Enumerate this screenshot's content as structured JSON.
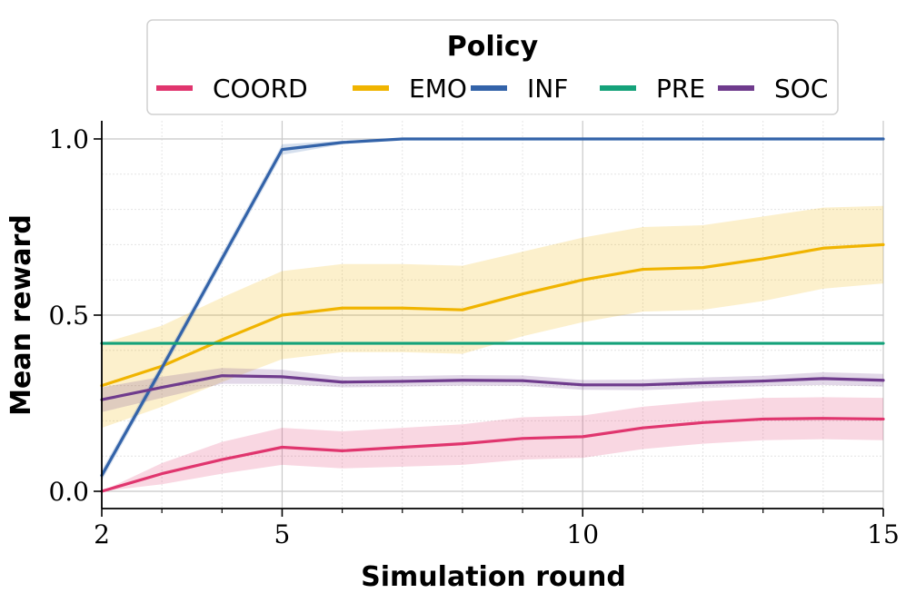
{
  "chart_data": {
    "type": "line",
    "xlabel": "Simulation round",
    "ylabel": "Mean reward",
    "xlim": [
      2,
      15
    ],
    "ylim": [
      -0.05,
      1.05
    ],
    "xticks": [
      2,
      5,
      10,
      15
    ],
    "xtick_labels": [
      "2",
      "5",
      "10",
      "15"
    ],
    "yticks": [
      0.0,
      0.5,
      1.0
    ],
    "ytick_labels": [
      "0.0",
      "0.5",
      "1.0"
    ],
    "grid": true,
    "legend": {
      "title": "Policy",
      "placement": "top"
    },
    "x": [
      2,
      3,
      4,
      5,
      6,
      7,
      8,
      9,
      10,
      11,
      12,
      13,
      14,
      15
    ],
    "series": [
      {
        "name": "COORD",
        "color": "#e0356e",
        "values": [
          0.0,
          0.05,
          0.09,
          0.125,
          0.115,
          0.125,
          0.135,
          0.15,
          0.155,
          0.18,
          0.195,
          0.205,
          0.207,
          0.205
        ],
        "lower": [
          0.0,
          0.02,
          0.05,
          0.075,
          0.065,
          0.07,
          0.075,
          0.09,
          0.095,
          0.12,
          0.135,
          0.145,
          0.148,
          0.145
        ],
        "upper": [
          0.0,
          0.08,
          0.14,
          0.18,
          0.17,
          0.18,
          0.19,
          0.21,
          0.215,
          0.24,
          0.255,
          0.265,
          0.267,
          0.265
        ]
      },
      {
        "name": "EMO",
        "color": "#f0b400",
        "values": [
          0.3,
          0.355,
          0.43,
          0.5,
          0.52,
          0.52,
          0.515,
          0.56,
          0.6,
          0.63,
          0.635,
          0.66,
          0.69,
          0.7
        ],
        "lower": [
          0.18,
          0.24,
          0.31,
          0.375,
          0.395,
          0.395,
          0.39,
          0.44,
          0.48,
          0.51,
          0.515,
          0.54,
          0.575,
          0.59
        ],
        "upper": [
          0.42,
          0.47,
          0.55,
          0.625,
          0.645,
          0.645,
          0.64,
          0.68,
          0.72,
          0.75,
          0.755,
          0.78,
          0.805,
          0.81
        ]
      },
      {
        "name": "INF",
        "color": "#3363a9",
        "values": [
          0.045,
          0.35,
          0.66,
          0.97,
          0.99,
          1.0,
          1.0,
          1.0,
          1.0,
          1.0,
          1.0,
          1.0,
          1.0,
          1.0
        ],
        "lower": [
          0.03,
          0.335,
          0.645,
          0.955,
          0.985,
          1.0,
          1.0,
          1.0,
          1.0,
          1.0,
          1.0,
          1.0,
          1.0,
          1.0
        ],
        "upper": [
          0.06,
          0.365,
          0.675,
          0.985,
          0.995,
          1.0,
          1.0,
          1.0,
          1.0,
          1.0,
          1.0,
          1.0,
          1.0,
          1.0
        ]
      },
      {
        "name": "PRE",
        "color": "#15a27a",
        "values": [
          0.42,
          0.42,
          0.42,
          0.42,
          0.42,
          0.42,
          0.42,
          0.42,
          0.42,
          0.42,
          0.42,
          0.42,
          0.42,
          0.42
        ],
        "lower": [
          0.42,
          0.42,
          0.42,
          0.42,
          0.42,
          0.42,
          0.42,
          0.42,
          0.42,
          0.42,
          0.42,
          0.42,
          0.42,
          0.42
        ],
        "upper": [
          0.42,
          0.42,
          0.42,
          0.42,
          0.42,
          0.42,
          0.42,
          0.42,
          0.42,
          0.42,
          0.42,
          0.42,
          0.42,
          0.42
        ]
      },
      {
        "name": "SOC",
        "color": "#6f3b8d",
        "values": [
          0.26,
          0.295,
          0.328,
          0.325,
          0.31,
          0.312,
          0.315,
          0.314,
          0.302,
          0.302,
          0.308,
          0.313,
          0.32,
          0.315
        ],
        "lower": [
          0.225,
          0.265,
          0.305,
          0.305,
          0.295,
          0.297,
          0.3,
          0.299,
          0.288,
          0.287,
          0.293,
          0.298,
          0.302,
          0.297
        ],
        "upper": [
          0.295,
          0.325,
          0.35,
          0.345,
          0.325,
          0.327,
          0.33,
          0.329,
          0.316,
          0.317,
          0.323,
          0.328,
          0.338,
          0.333
        ]
      }
    ]
  }
}
